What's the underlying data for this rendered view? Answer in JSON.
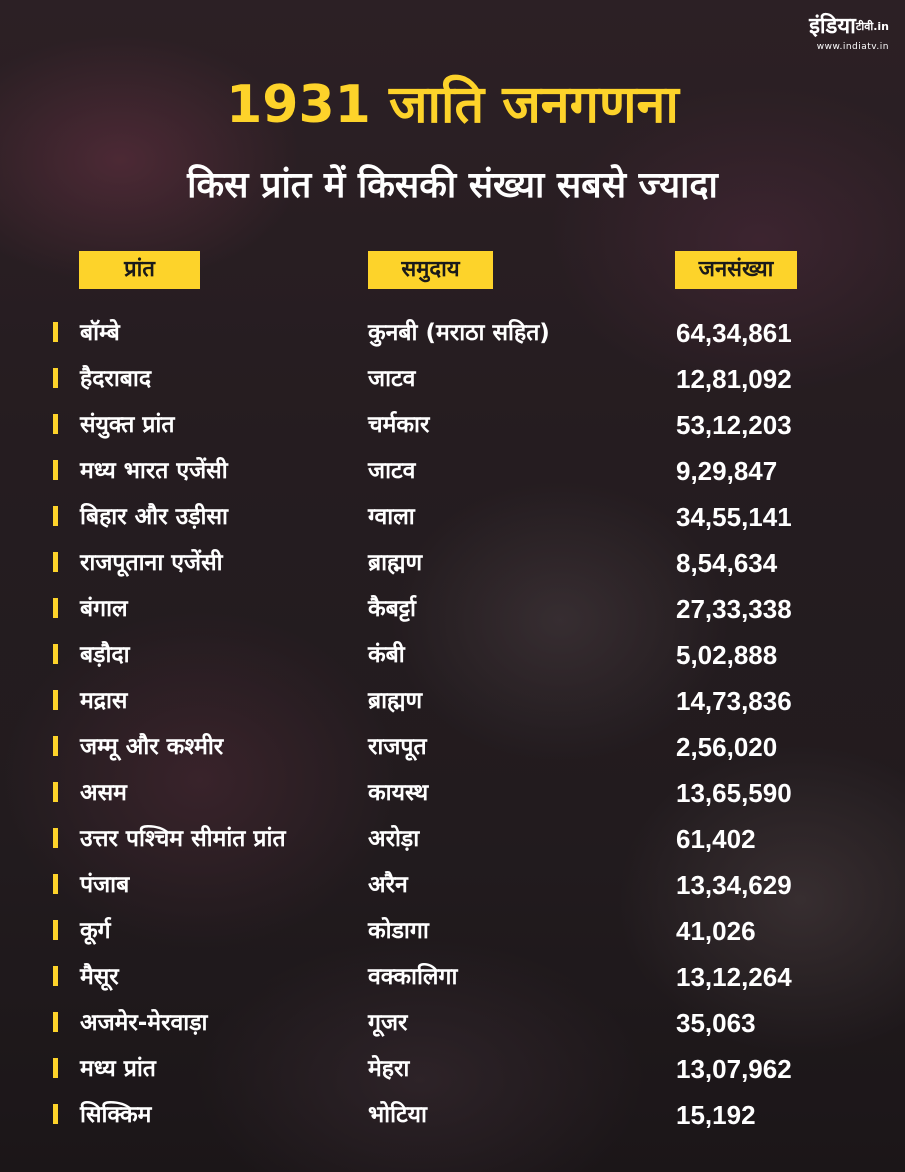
{
  "logo": {
    "brand": "इंडिया",
    "brand_suffix": "टीवी.in",
    "url": "www.indiatv.in"
  },
  "title": "1931 जाति जनगणना",
  "subtitle": "किस प्रांत में किसकी संख्या सबसे ज्यादा",
  "headers": {
    "prant": "प्रांत",
    "samuday": "समुदाय",
    "jansankhya": "जनसंख्या"
  },
  "colors": {
    "accent": "#fdd32a",
    "text": "#ffffff",
    "header_text": "#1a1a1a"
  },
  "rows": [
    {
      "prant": "बॉम्बे",
      "samuday": "कुनबी (मराठा सहित)",
      "jansankhya": "64,34,861"
    },
    {
      "prant": "हैदराबाद",
      "samuday": "जाटव",
      "jansankhya": "12,81,092"
    },
    {
      "prant": "संयुक्त प्रांत",
      "samuday": "चर्मकार",
      "jansankhya": "53,12,203"
    },
    {
      "prant": "मध्य भारत एजेंसी",
      "samuday": "जाटव",
      "jansankhya": "9,29,847"
    },
    {
      "prant": "बिहार और उड़ीसा",
      "samuday": "ग्वाला",
      "jansankhya": "34,55,141"
    },
    {
      "prant": "राजपूताना एजेंसी",
      "samuday": "ब्राह्मण",
      "jansankhya": "8,54,634"
    },
    {
      "prant": "बंगाल",
      "samuday": "कैबर्ट्टा",
      "jansankhya": "27,33,338"
    },
    {
      "prant": "बड़ौदा",
      "samuday": "कंबी",
      "jansankhya": "5,02,888"
    },
    {
      "prant": "मद्रास",
      "samuday": "ब्राह्मण",
      "jansankhya": "14,73,836"
    },
    {
      "prant": "जम्मू और कश्मीर",
      "samuday": "राजपूत",
      "jansankhya": "2,56,020"
    },
    {
      "prant": "असम",
      "samuday": "कायस्थ",
      "jansankhya": "13,65,590"
    },
    {
      "prant": "उत्तर पश्चिम सीमांत प्रांत",
      "samuday": "अरोड़ा",
      "jansankhya": "61,402"
    },
    {
      "prant": "पंजाब",
      "samuday": "अरैन",
      "jansankhya": "13,34,629"
    },
    {
      "prant": "कूर्ग",
      "samuday": "कोडागा",
      "jansankhya": "41,026"
    },
    {
      "prant": "मैसूर",
      "samuday": "वक्कालिगा",
      "jansankhya": "13,12,264"
    },
    {
      "prant": "अजमेर-मेरवाड़ा",
      "samuday": "गूजर",
      "jansankhya": "35,063"
    },
    {
      "prant": "मध्य प्रांत",
      "samuday": "मेहरा",
      "jansankhya": "13,07,962"
    },
    {
      "prant": "सिक्किम",
      "samuday": "भोटिया",
      "jansankhya": "15,192"
    }
  ]
}
